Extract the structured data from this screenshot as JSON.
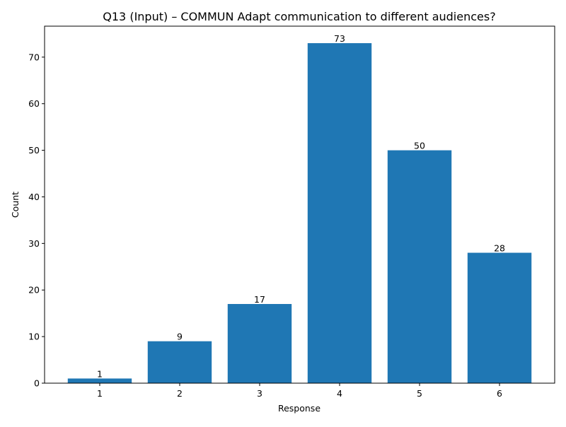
{
  "chart_data": {
    "type": "bar",
    "title": "Q13 (Input) – COMMUN Adapt communication to different audiences?",
    "xlabel": "Response",
    "ylabel": "Count",
    "categories": [
      "1",
      "2",
      "3",
      "4",
      "5",
      "6"
    ],
    "values": [
      1,
      9,
      17,
      73,
      50,
      28
    ],
    "ylim": [
      0,
      76.65
    ],
    "yticks": [
      0,
      10,
      20,
      30,
      40,
      50,
      60,
      70
    ],
    "grid": false,
    "bar_color": "#1f77b4",
    "show_value_labels": true
  }
}
